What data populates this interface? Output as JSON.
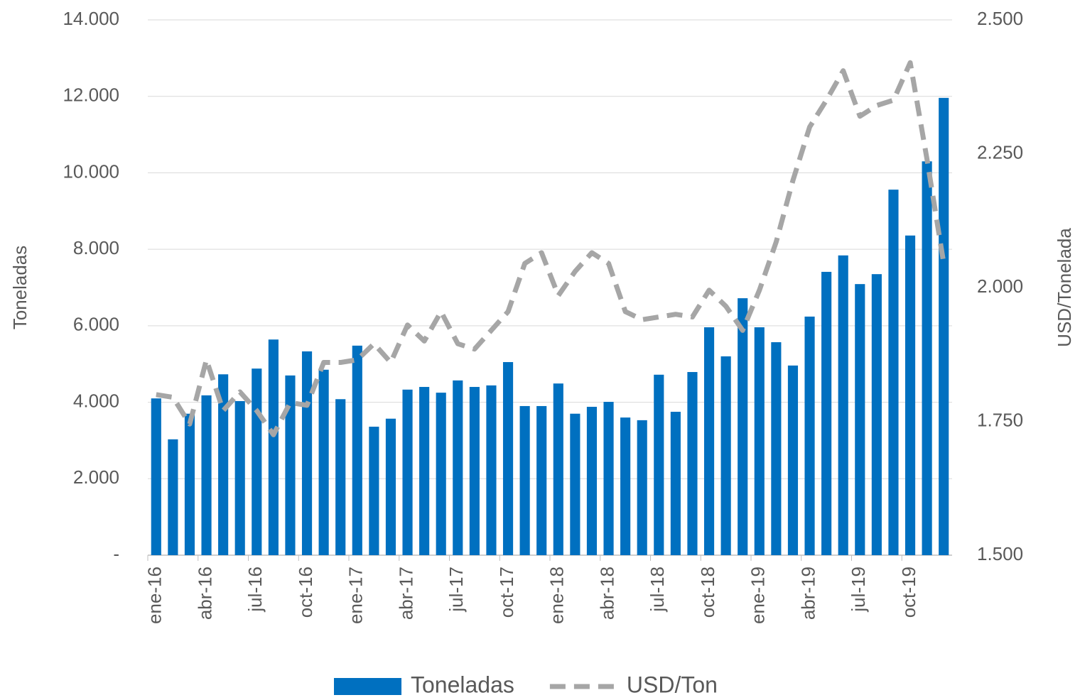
{
  "chart_data": {
    "type": "bar-line",
    "categories": [
      "ene-16",
      null,
      null,
      "abr-16",
      null,
      null,
      "jul-16",
      null,
      null,
      "oct-16",
      null,
      null,
      "ene-17",
      null,
      null,
      "abr-17",
      null,
      null,
      "jul-17",
      null,
      null,
      "oct-17",
      null,
      null,
      "ene-18",
      null,
      null,
      "abr-18",
      null,
      null,
      "jul-18",
      null,
      null,
      "oct-18",
      null,
      null,
      "ene-19",
      null,
      null,
      "abr-19",
      null,
      null,
      "jul-19",
      null,
      null,
      "oct-19",
      null,
      null
    ],
    "series": [
      {
        "name": "Toneladas",
        "color": "#0070c0",
        "type": "bar",
        "axis": "y",
        "values": [
          4100,
          3030,
          3700,
          4180,
          4730,
          4030,
          4880,
          5640,
          4700,
          5330,
          4850,
          4080,
          5480,
          3360,
          3570,
          4330,
          4400,
          4250,
          4570,
          4400,
          4440,
          5050,
          3900,
          3900,
          4490,
          3700,
          3880,
          4010,
          3600,
          3530,
          4720,
          3750,
          4790,
          5960,
          5200,
          6720,
          5960,
          5570,
          4960,
          6240,
          7410,
          7840,
          7090,
          7350,
          9560,
          8360,
          10300,
          11960
        ]
      },
      {
        "name": "USD/Ton",
        "color": "#a6a6a6",
        "type": "line",
        "dashed": true,
        "axis": "y2",
        "values": [
          1800,
          1795,
          1745,
          1865,
          1770,
          1805,
          1770,
          1725,
          1785,
          1780,
          1860,
          1860,
          1865,
          1895,
          1860,
          1930,
          1900,
          1955,
          1895,
          1885,
          1920,
          1955,
          2045,
          2065,
          1985,
          2030,
          2065,
          2045,
          1955,
          1940,
          1945,
          1950,
          1945,
          1995,
          1965,
          1920,
          1995,
          2085,
          2200,
          2300,
          2350,
          2405,
          2320,
          2340,
          2350,
          2420,
          2240,
          2045
        ]
      }
    ],
    "ylabel": "Toneladas",
    "y2label": "USD/Tonelada",
    "ylim": [
      0,
      14000
    ],
    "yticks": [
      {
        "value": 0,
        "label": "-"
      },
      {
        "value": 2000,
        "label": "2.000"
      },
      {
        "value": 4000,
        "label": "4.000"
      },
      {
        "value": 6000,
        "label": "6.000"
      },
      {
        "value": 8000,
        "label": "8.000"
      },
      {
        "value": 10000,
        "label": "10.000"
      },
      {
        "value": 12000,
        "label": "12.000"
      },
      {
        "value": 14000,
        "label": "14.000"
      }
    ],
    "y2lim": [
      1500,
      2500
    ],
    "y2ticks": [
      {
        "value": 1500,
        "label": "1.500"
      },
      {
        "value": 1750,
        "label": "1.750"
      },
      {
        "value": 2000,
        "label": "2.000"
      },
      {
        "value": 2250,
        "label": "2.250"
      },
      {
        "value": 2500,
        "label": "2.500"
      }
    ],
    "grid": true,
    "legend": "bottom"
  }
}
